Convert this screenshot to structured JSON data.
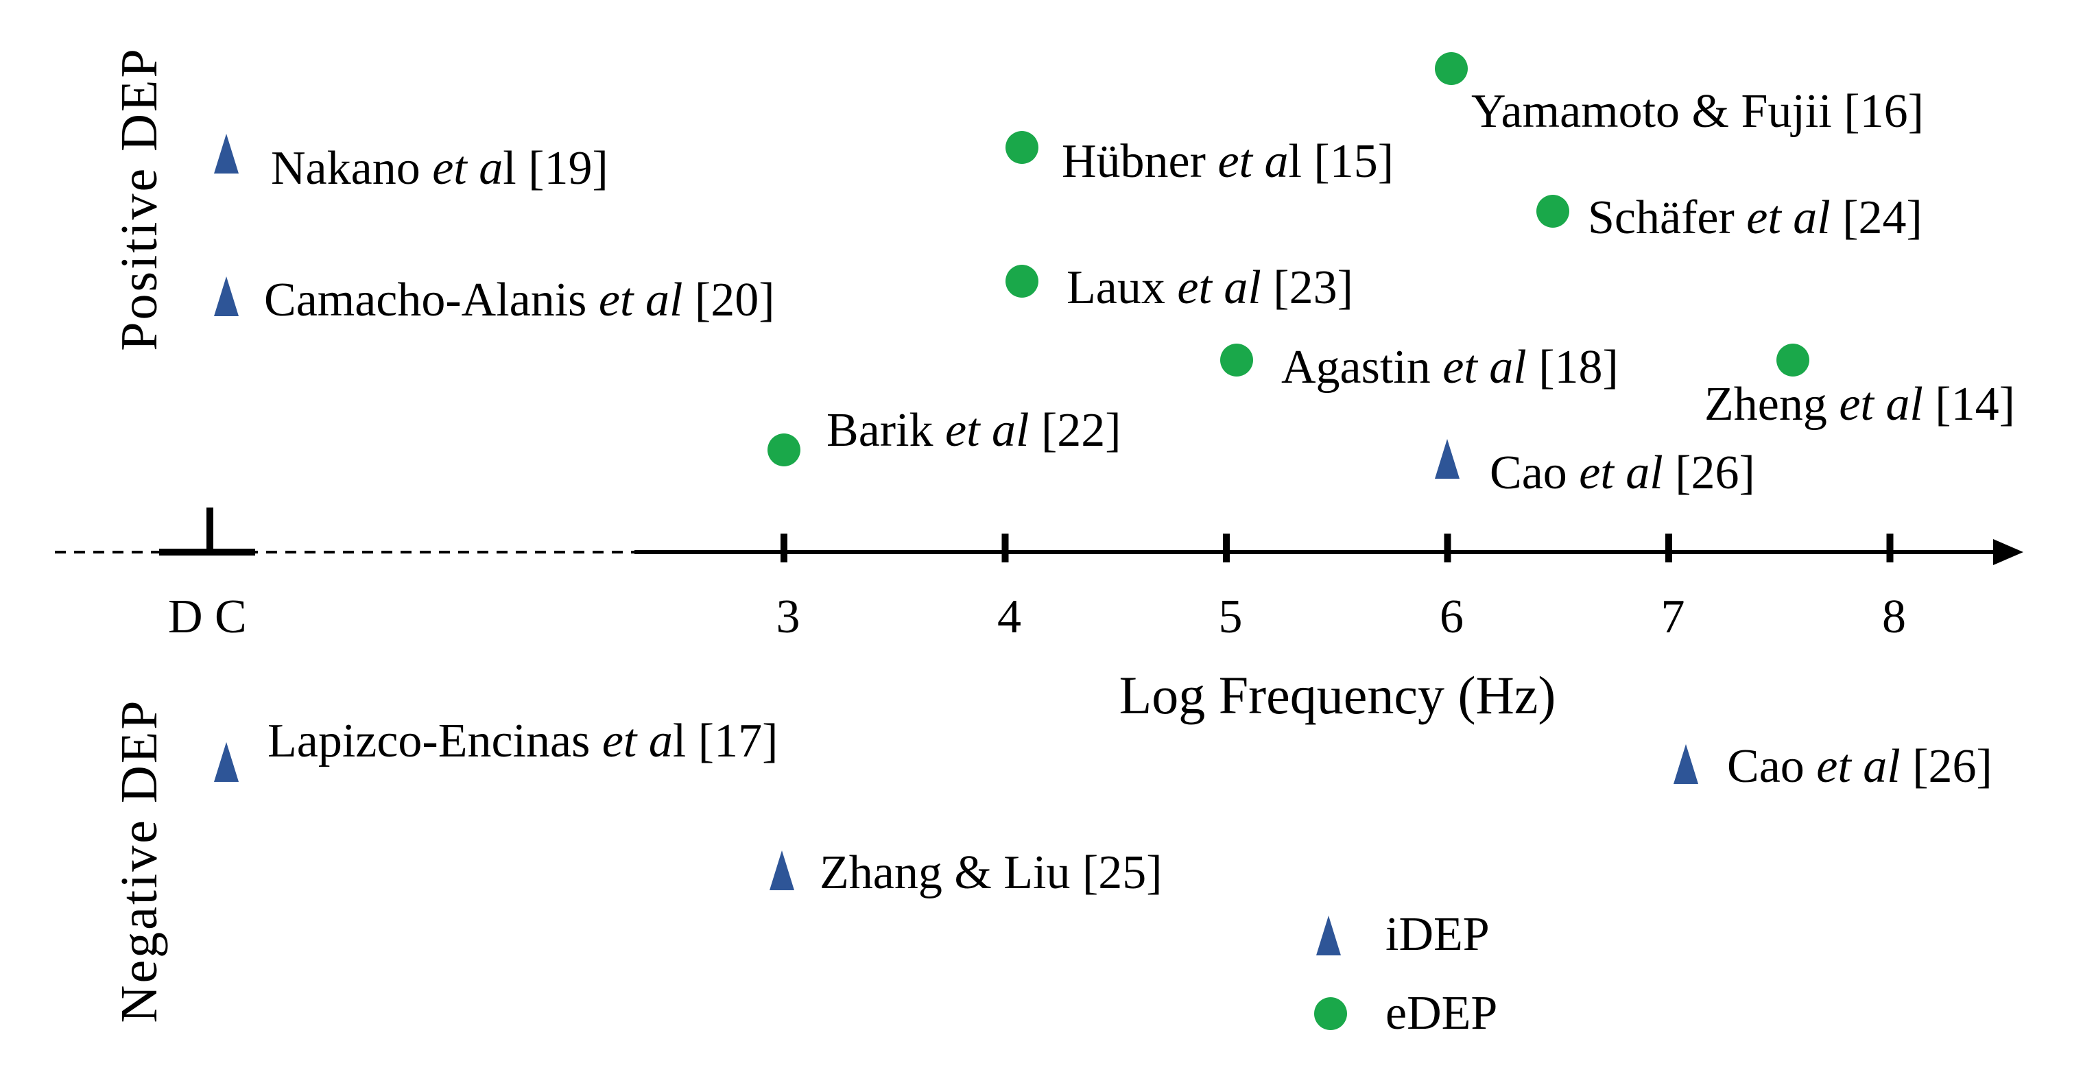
{
  "diagram": {
    "x_axis_title": "Log Frequency (Hz)",
    "dc_label": "D C",
    "tick_labels": [
      "3",
      "4",
      "5",
      "6",
      "7",
      "8"
    ],
    "side_labels": {
      "positive": "Positive DEP",
      "negative": "Negative DEP"
    },
    "colors": {
      "idep": "#2e5597",
      "edep": "#1aa84a",
      "axis": "#000000"
    },
    "icons": {
      "idep": "triangle-marker",
      "edep": "circle-marker"
    },
    "legend": [
      {
        "key": "idep",
        "label": "iDEP"
      },
      {
        "key": "edep",
        "label": "eDEP"
      }
    ],
    "studies": [
      {
        "type": "idep",
        "x": "DC",
        "region": "positive",
        "name": "Nakano ",
        "etal": "et a",
        "tail": "l [19]"
      },
      {
        "type": "idep",
        "x": "DC",
        "region": "positive",
        "name": "Camacho-Alanis  ",
        "etal": "et al",
        "tail": " [20]"
      },
      {
        "type": "idep",
        "x": "DC",
        "region": "negative",
        "name": "Lapizco-Encinas  ",
        "etal": "et a",
        "tail": "l [17]"
      },
      {
        "type": "idep",
        "x": 3,
        "region": "negative",
        "name": "Zhang  & Liu  [25]",
        "etal": "",
        "tail": ""
      },
      {
        "type": "edep",
        "x": 3,
        "region": "positive",
        "name": "Barik ",
        "etal": "et al",
        "tail": " [22]"
      },
      {
        "type": "edep",
        "x": 4,
        "region": "positive",
        "name": "Hübner  ",
        "etal": "et a",
        "tail": "l [15]"
      },
      {
        "type": "edep",
        "x": 4,
        "region": "positive",
        "name": "Laux  ",
        "etal": "et al",
        "tail": " [23]"
      },
      {
        "type": "edep",
        "x": 5,
        "region": "positive",
        "name": "Agastin  ",
        "etal": "et al",
        "tail": " [18]"
      },
      {
        "type": "edep",
        "x": 6,
        "region": "positive",
        "name": "Yamamoto  & Fujii  [16]",
        "etal": "",
        "tail": ""
      },
      {
        "type": "edep",
        "x": 6.5,
        "region": "positive",
        "name": "Schäfer  ",
        "etal": "et al",
        "tail": " [24]"
      },
      {
        "type": "edep",
        "x": 7.5,
        "region": "positive",
        "name": "Zheng  ",
        "etal": "et al",
        "tail": " [14]"
      },
      {
        "type": "idep",
        "x": 6,
        "region": "positive",
        "name": "Cao ",
        "etal": "et al",
        "tail": " [26]"
      },
      {
        "type": "idep",
        "x": 7,
        "region": "negative",
        "name": "Cao ",
        "etal": "et al",
        "tail": " [26]"
      }
    ]
  }
}
